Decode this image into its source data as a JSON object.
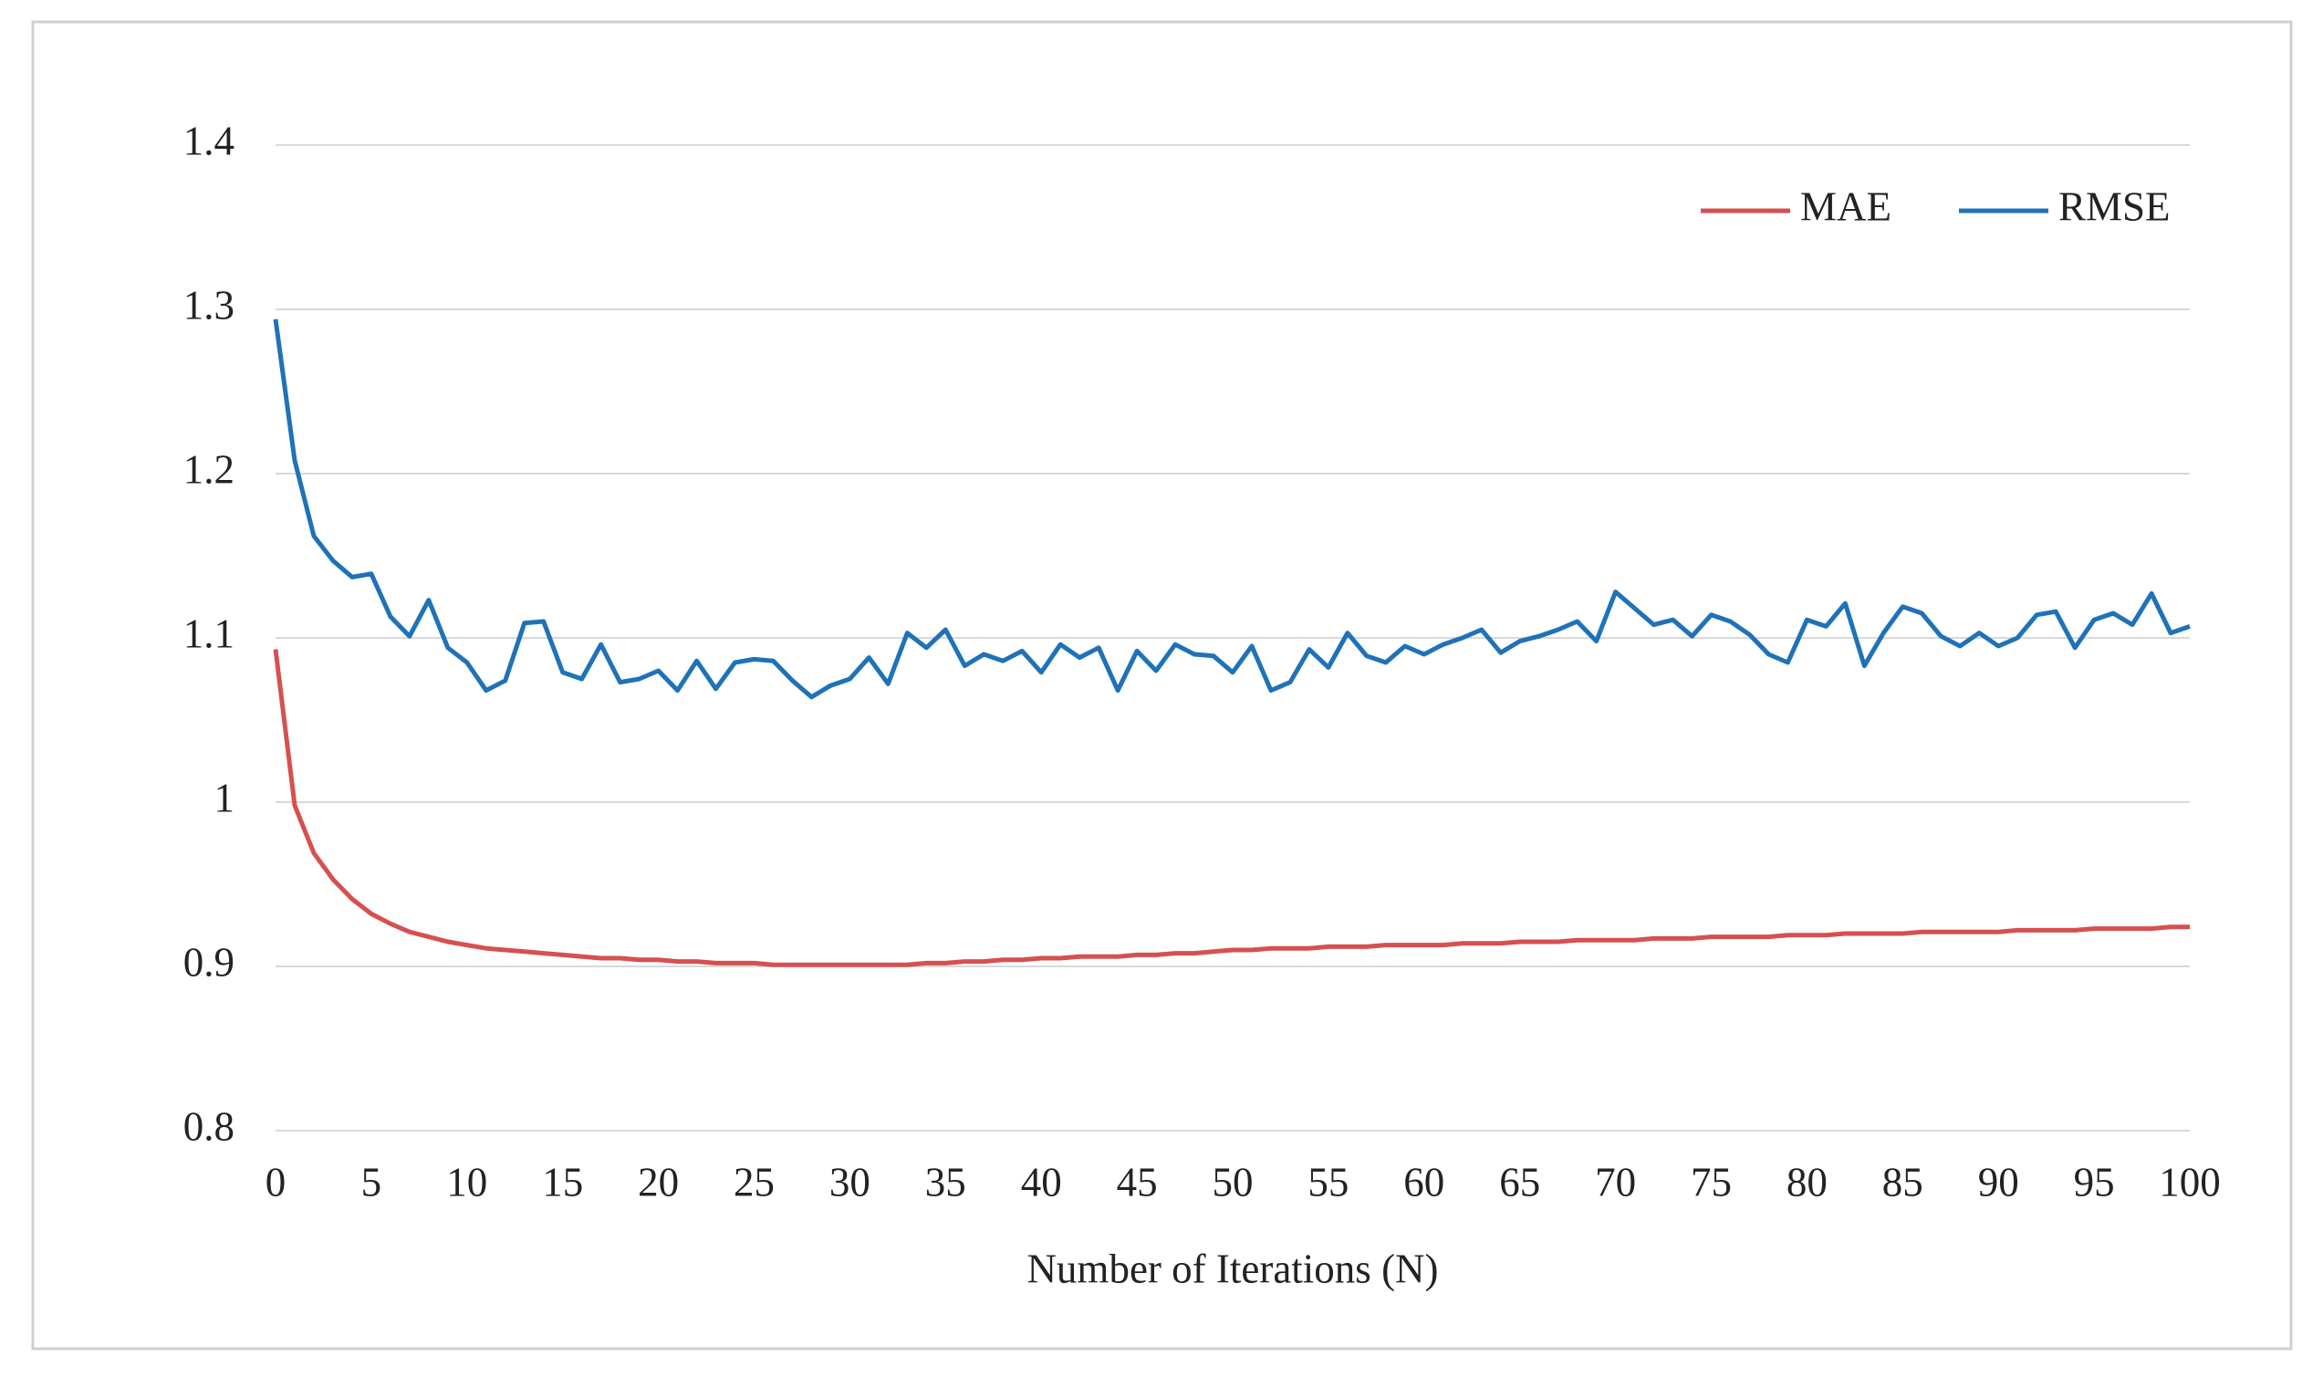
{
  "chart_data": {
    "type": "line",
    "x_label": "Number of Iterations (N)",
    "x": [
      0,
      1,
      2,
      3,
      4,
      5,
      6,
      7,
      8,
      9,
      10,
      11,
      12,
      13,
      14,
      15,
      16,
      17,
      18,
      19,
      20,
      21,
      22,
      23,
      24,
      25,
      26,
      27,
      28,
      29,
      30,
      31,
      32,
      33,
      34,
      35,
      36,
      37,
      38,
      39,
      40,
      41,
      42,
      43,
      44,
      45,
      46,
      47,
      48,
      49,
      50,
      51,
      52,
      53,
      54,
      55,
      56,
      57,
      58,
      59,
      60,
      61,
      62,
      63,
      64,
      65,
      66,
      67,
      68,
      69,
      70,
      71,
      72,
      73,
      74,
      75,
      76,
      77,
      78,
      79,
      80,
      81,
      82,
      83,
      84,
      85,
      86,
      87,
      88,
      89,
      90,
      91,
      92,
      93,
      94,
      95,
      96,
      97,
      98,
      99,
      100
    ],
    "series": [
      {
        "name": "MAE",
        "color": "#d65050",
        "values": [
          1.093,
          0.998,
          0.969,
          0.953,
          0.941,
          0.932,
          0.926,
          0.921,
          0.918,
          0.915,
          0.913,
          0.911,
          0.91,
          0.909,
          0.908,
          0.907,
          0.906,
          0.905,
          0.905,
          0.904,
          0.904,
          0.903,
          0.903,
          0.902,
          0.902,
          0.902,
          0.901,
          0.901,
          0.901,
          0.901,
          0.901,
          0.901,
          0.901,
          0.901,
          0.902,
          0.902,
          0.903,
          0.903,
          0.904,
          0.904,
          0.905,
          0.905,
          0.906,
          0.906,
          0.906,
          0.907,
          0.907,
          0.908,
          0.908,
          0.909,
          0.91,
          0.91,
          0.911,
          0.911,
          0.911,
          0.912,
          0.912,
          0.912,
          0.913,
          0.913,
          0.913,
          0.913,
          0.914,
          0.914,
          0.914,
          0.915,
          0.915,
          0.915,
          0.916,
          0.916,
          0.916,
          0.916,
          0.917,
          0.917,
          0.917,
          0.918,
          0.918,
          0.918,
          0.918,
          0.919,
          0.919,
          0.919,
          0.92,
          0.92,
          0.92,
          0.92,
          0.921,
          0.921,
          0.921,
          0.921,
          0.921,
          0.922,
          0.922,
          0.922,
          0.922,
          0.923,
          0.923,
          0.923,
          0.923,
          0.924,
          0.924
        ]
      },
      {
        "name": "RMSE",
        "color": "#1f72b8",
        "values": [
          1.294,
          1.208,
          1.162,
          1.147,
          1.137,
          1.139,
          1.113,
          1.101,
          1.123,
          1.094,
          1.085,
          1.068,
          1.074,
          1.109,
          1.11,
          1.079,
          1.075,
          1.096,
          1.073,
          1.075,
          1.08,
          1.068,
          1.086,
          1.069,
          1.085,
          1.087,
          1.086,
          1.074,
          1.064,
          1.071,
          1.075,
          1.088,
          1.072,
          1.103,
          1.094,
          1.105,
          1.083,
          1.09,
          1.086,
          1.092,
          1.079,
          1.096,
          1.088,
          1.094,
          1.068,
          1.092,
          1.08,
          1.096,
          1.09,
          1.089,
          1.079,
          1.095,
          1.068,
          1.073,
          1.093,
          1.082,
          1.103,
          1.089,
          1.085,
          1.095,
          1.09,
          1.096,
          1.1,
          1.105,
          1.091,
          1.098,
          1.101,
          1.105,
          1.11,
          1.098,
          1.128,
          1.118,
          1.108,
          1.111,
          1.101,
          1.114,
          1.11,
          1.102,
          1.09,
          1.085,
          1.111,
          1.107,
          1.121,
          1.083,
          1.103,
          1.119,
          1.115,
          1.101,
          1.095,
          1.103,
          1.095,
          1.1,
          1.114,
          1.116,
          1.094,
          1.111,
          1.115,
          1.108,
          1.127,
          1.103,
          1.107
        ]
      }
    ],
    "xlim": [
      0,
      100
    ],
    "xticks": [
      0,
      5,
      10,
      15,
      20,
      25,
      30,
      35,
      40,
      45,
      50,
      55,
      60,
      65,
      70,
      75,
      80,
      85,
      90,
      95,
      100
    ],
    "ylim": [
      0.8,
      1.4
    ],
    "yticks": [
      0.8,
      0.9,
      1,
      1.1,
      1.2,
      1.3,
      1.4
    ],
    "grid": true,
    "legend": "upper right"
  }
}
